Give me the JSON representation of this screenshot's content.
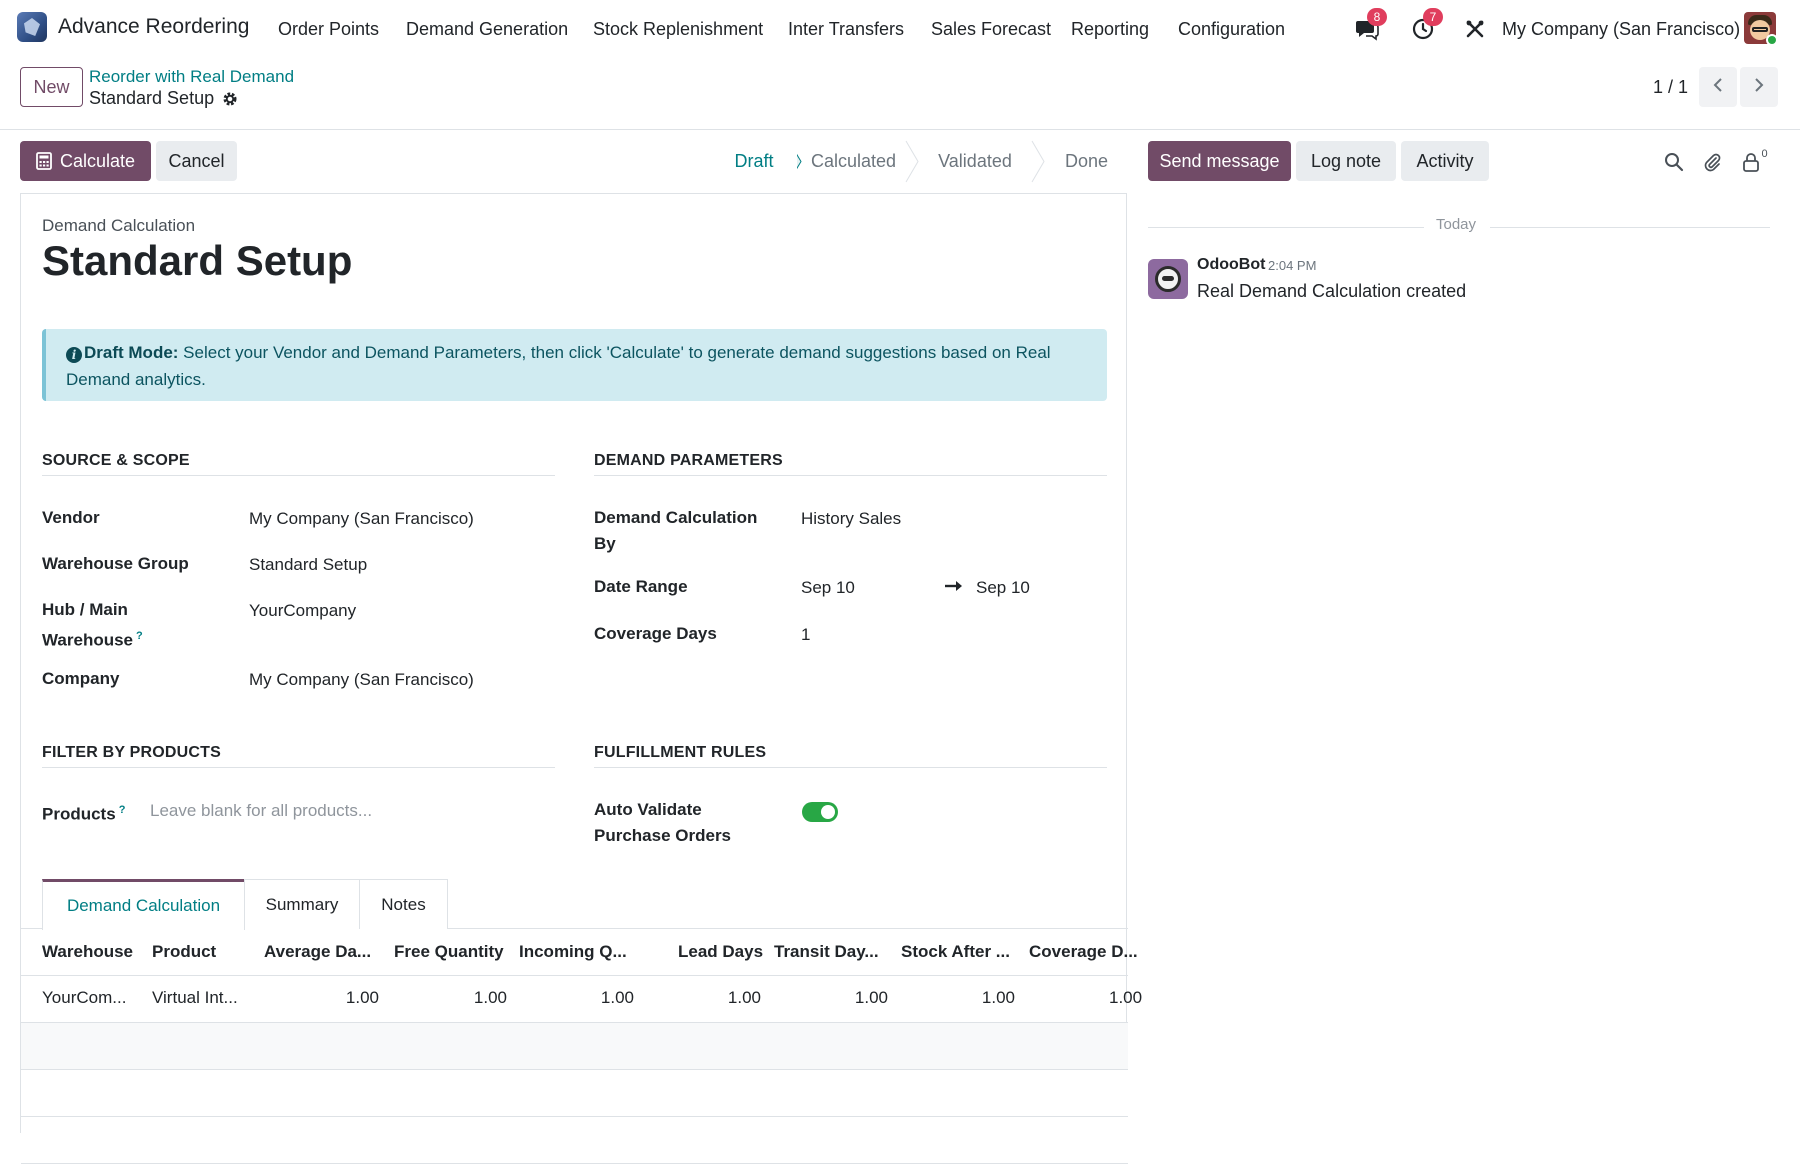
{
  "navbar": {
    "app_name": "Advance Reordering",
    "menus": [
      "Order Points",
      "Demand Generation",
      "Stock Replenishment",
      "Inter Transfers",
      "Sales Forecast",
      "Reporting",
      "Configuration"
    ],
    "messages_badge": "8",
    "activities_badge": "7",
    "company": "My Company (San Francisco)"
  },
  "control_panel": {
    "new_label": "New",
    "breadcrumb_parent": "Reorder with Real Demand",
    "breadcrumb_current": "Standard Setup",
    "pager": "1 / 1"
  },
  "actions": {
    "calculate_label": "Calculate",
    "cancel_label": "Cancel"
  },
  "statusbar": {
    "steps": [
      "Draft",
      "Calculated",
      "Validated",
      "Done"
    ],
    "active": "Draft"
  },
  "chatter": {
    "send_message_label": "Send message",
    "log_note_label": "Log note",
    "activity_label": "Activity",
    "followers_count": "0",
    "today_label": "Today",
    "message": {
      "author": "OdooBot",
      "time": "2:04 PM",
      "body": "Real Demand Calculation created"
    }
  },
  "form": {
    "label_top": "Demand Calculation",
    "title": "Standard Setup",
    "alert_bold": "Draft Mode:",
    "alert_text": " Select your Vendor and Demand Parameters, then click 'Calculate' to generate demand suggestions based on Real Demand analytics.",
    "source_scope": {
      "title": "SOURCE & SCOPE",
      "vendor_label": "Vendor",
      "vendor_value": "My Company (San Francisco)",
      "warehouse_group_label": "Warehouse Group",
      "warehouse_group_value": "Standard Setup",
      "hub_label": "Hub / Main Warehouse",
      "hub_value": "YourCompany",
      "company_label": "Company",
      "company_value": "My Company (San Francisco)"
    },
    "demand_params": {
      "title": "DEMAND PARAMETERS",
      "calc_by_label": "Demand Calculation By",
      "calc_by_value": "History Sales",
      "date_range_label": "Date Range",
      "date_from": "Sep 10",
      "date_to": "Sep 10",
      "coverage_label": "Coverage Days",
      "coverage_value": "1"
    },
    "filter_products": {
      "title": "FILTER BY PRODUCTS",
      "products_label": "Products",
      "products_placeholder": "Leave blank for all products..."
    },
    "fulfillment": {
      "title": "FULFILLMENT RULES",
      "auto_validate_label": "Auto Validate Purchase Orders",
      "auto_validate_on": true
    },
    "tabs": [
      "Demand Calculation",
      "Summary",
      "Notes"
    ],
    "table": {
      "headers": [
        "Warehouse",
        "Product",
        "Average Da...",
        "Free Quantity",
        "Incoming Q...",
        "Lead Days",
        "Transit Day...",
        "Stock After ...",
        "Coverage D..."
      ],
      "rows": [
        [
          "YourCom...",
          "Virtual Int...",
          "1.00",
          "1.00",
          "1.00",
          "1.00",
          "1.00",
          "1.00",
          "1.00"
        ]
      ]
    }
  }
}
